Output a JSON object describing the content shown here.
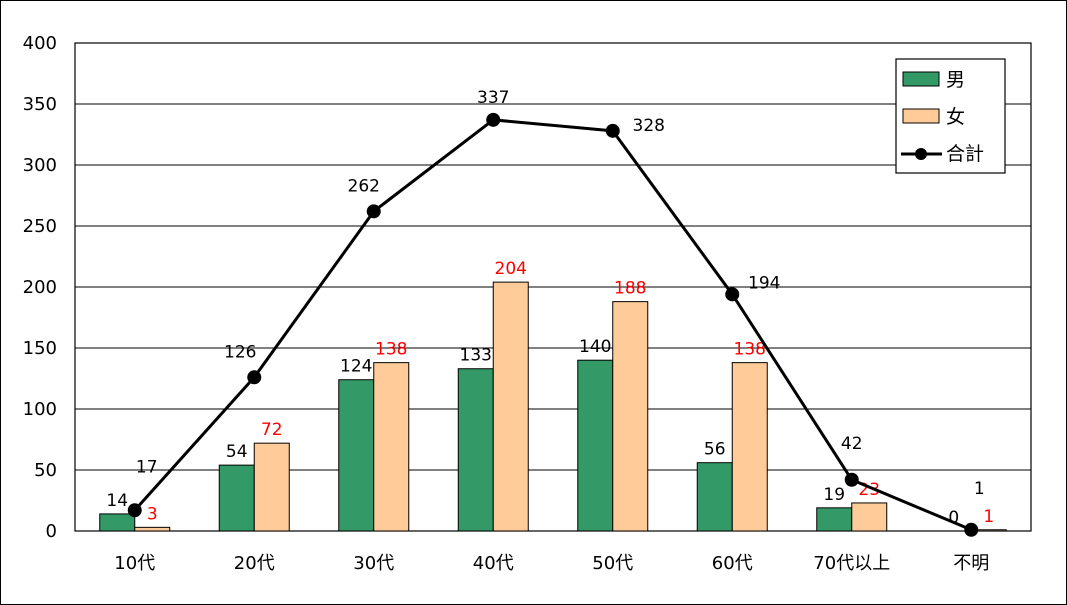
{
  "chart_data": {
    "type": "bar",
    "categories": [
      "10代",
      "20代",
      "30代",
      "40代",
      "50代",
      "60代",
      "70代以上",
      "不明"
    ],
    "ylim": [
      0,
      400
    ],
    "yticks": [
      "0",
      "50",
      "100",
      "150",
      "200",
      "250",
      "300",
      "350",
      "400"
    ],
    "series": [
      {
        "name": "男",
        "kind": "bar",
        "color": "#339966",
        "label_color": "#000000",
        "values": [
          14,
          54,
          124,
          133,
          140,
          56,
          19,
          0
        ]
      },
      {
        "name": "女",
        "kind": "bar",
        "color": "#FFCC99",
        "label_color": "#FF0000",
        "values": [
          3,
          72,
          138,
          204,
          188,
          138,
          23,
          1
        ]
      },
      {
        "name": "合計",
        "kind": "line",
        "color": "#000000",
        "label_color": "#000000",
        "values": [
          17,
          126,
          262,
          337,
          328,
          194,
          42,
          1
        ]
      }
    ],
    "grid": true,
    "legend_position": "top-right"
  }
}
